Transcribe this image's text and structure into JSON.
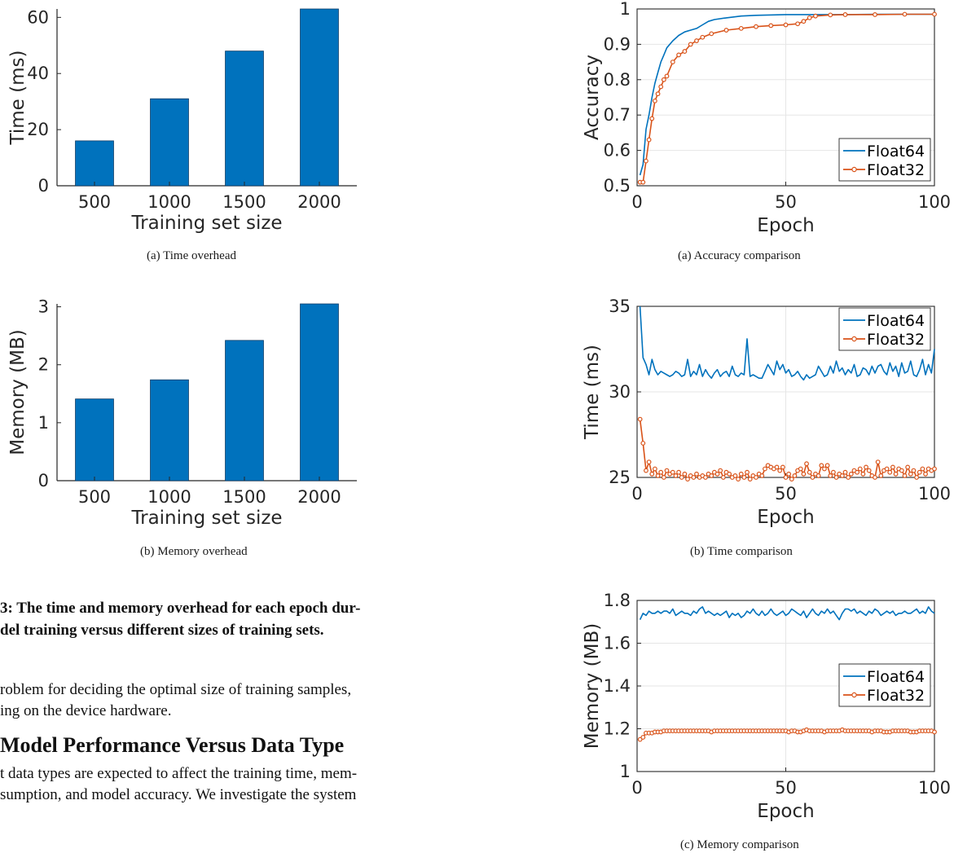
{
  "chart_data": [
    {
      "id": "time_overhead",
      "type": "bar",
      "categories": [
        "500",
        "1000",
        "1500",
        "2000"
      ],
      "values": [
        16,
        31,
        48,
        63
      ],
      "xlabel": "Training set size",
      "ylabel": "Time (ms)",
      "ylim": [
        0,
        63
      ],
      "yticks": [
        0,
        20,
        40,
        60
      ],
      "caption": "(a)  Time overhead",
      "color": "#0072bd"
    },
    {
      "id": "memory_overhead",
      "type": "bar",
      "categories": [
        "500",
        "1000",
        "1500",
        "2000"
      ],
      "values": [
        1.41,
        1.74,
        2.42,
        3.05
      ],
      "xlabel": "Training set size",
      "ylabel": "Memory (MB)",
      "ylim": [
        0,
        3.05
      ],
      "yticks": [
        0,
        1,
        2,
        3
      ],
      "caption": "(b)  Memory overhead",
      "color": "#0072bd"
    },
    {
      "id": "accuracy_comparison",
      "type": "line",
      "xlabel": "Epoch",
      "ylabel": "Accuracy",
      "xlim": [
        0,
        100
      ],
      "ylim": [
        0.5,
        1
      ],
      "xticks": [
        0,
        50,
        100
      ],
      "yticks": [
        0.5,
        0.6,
        0.7,
        0.8,
        0.9,
        1
      ],
      "ytick_labels": [
        "0.5",
        "0.6",
        "0.7",
        "0.8",
        "0.9",
        "1"
      ],
      "grid": true,
      "legend": "bottom-right",
      "caption": "(a)  Accuracy comparison",
      "series": [
        {
          "name": "Float64",
          "color": "#0072bd",
          "marker": "none",
          "x": [
            1,
            2,
            3,
            4,
            5,
            6,
            7,
            8,
            9,
            10,
            12,
            14,
            16,
            18,
            20,
            22,
            24,
            26,
            30,
            35,
            40,
            50,
            60,
            70,
            80,
            90,
            100
          ],
          "y": [
            0.53,
            0.56,
            0.66,
            0.7,
            0.75,
            0.79,
            0.82,
            0.85,
            0.87,
            0.89,
            0.91,
            0.925,
            0.935,
            0.94,
            0.945,
            0.955,
            0.965,
            0.97,
            0.975,
            0.98,
            0.982,
            0.984,
            0.984,
            0.984,
            0.985,
            0.985,
            0.985
          ]
        },
        {
          "name": "Float32",
          "color": "#d95319",
          "marker": "circle",
          "x": [
            1,
            2,
            3,
            4,
            5,
            6,
            7,
            8,
            9,
            10,
            12,
            14,
            16,
            18,
            20,
            22,
            25,
            30,
            35,
            40,
            45,
            50,
            54,
            56,
            58,
            60,
            65,
            70,
            80,
            90,
            100
          ],
          "y": [
            0.51,
            0.51,
            0.57,
            0.63,
            0.69,
            0.74,
            0.76,
            0.78,
            0.8,
            0.81,
            0.85,
            0.87,
            0.88,
            0.9,
            0.91,
            0.92,
            0.93,
            0.94,
            0.945,
            0.95,
            0.953,
            0.955,
            0.958,
            0.965,
            0.975,
            0.98,
            0.983,
            0.984,
            0.984,
            0.985,
            0.985
          ]
        }
      ]
    },
    {
      "id": "time_comparison",
      "type": "line",
      "xlabel": "Epoch",
      "ylabel": "Time (ms)",
      "xlim": [
        0,
        100
      ],
      "ylim": [
        25,
        35
      ],
      "xticks": [
        0,
        50,
        100
      ],
      "yticks": [
        25,
        30,
        35
      ],
      "grid": true,
      "legend": "top-right",
      "caption": "(b)  Time comparison",
      "series": [
        {
          "name": "Float64",
          "color": "#0072bd",
          "marker": "none",
          "x": [
            1,
            2,
            3,
            4,
            5,
            6,
            7,
            8,
            9,
            10,
            11,
            12,
            13,
            14,
            15,
            16,
            17,
            18,
            19,
            20,
            21,
            22,
            23,
            24,
            25,
            26,
            27,
            28,
            29,
            30,
            31,
            32,
            33,
            34,
            35,
            36,
            37,
            38,
            39,
            40,
            41,
            42,
            43,
            44,
            45,
            46,
            47,
            48,
            49,
            50,
            51,
            52,
            53,
            54,
            55,
            56,
            57,
            58,
            59,
            60,
            61,
            62,
            63,
            64,
            65,
            66,
            67,
            68,
            69,
            70,
            71,
            72,
            73,
            74,
            75,
            76,
            77,
            78,
            79,
            80,
            81,
            82,
            83,
            84,
            85,
            86,
            87,
            88,
            89,
            90,
            91,
            92,
            93,
            94,
            95,
            96,
            97,
            98,
            99,
            100
          ],
          "y": [
            35.0,
            32.0,
            31.6,
            31.0,
            31.9,
            31.3,
            31.0,
            31.2,
            31.1,
            31.0,
            30.9,
            31.0,
            31.2,
            31.1,
            30.9,
            31.0,
            31.9,
            30.9,
            31.2,
            31.0,
            31.6,
            30.9,
            31.3,
            31.0,
            30.8,
            31.1,
            31.3,
            30.9,
            31.1,
            31.2,
            30.9,
            31.5,
            31.0,
            30.9,
            31.1,
            31.0,
            33.1,
            30.9,
            31.0,
            30.9,
            30.8,
            30.8,
            31.2,
            31.6,
            31.3,
            31.0,
            31.8,
            31.3,
            31.6,
            31.1,
            31.3,
            30.9,
            31.0,
            31.2,
            30.9,
            30.7,
            31.0,
            30.8,
            30.9,
            31.0,
            31.5,
            31.2,
            30.9,
            31.0,
            31.5,
            31.1,
            31.8,
            31.2,
            31.4,
            31.0,
            31.3,
            31.1,
            31.6,
            30.9,
            31.0,
            31.4,
            31.3,
            31.0,
            31.5,
            31.1,
            31.5,
            31.6,
            31.2,
            31.0,
            31.7,
            31.2,
            31.5,
            30.9,
            31.7,
            31.1,
            31.2,
            31.8,
            31.0,
            30.9,
            31.3,
            31.9,
            31.0,
            31.6,
            31.1,
            32.5
          ]
        },
        {
          "name": "Float32",
          "color": "#d95319",
          "marker": "circle",
          "x": [
            1,
            2,
            3,
            4,
            5,
            6,
            7,
            8,
            9,
            10,
            11,
            12,
            13,
            14,
            15,
            16,
            17,
            18,
            19,
            20,
            21,
            22,
            23,
            24,
            25,
            26,
            27,
            28,
            29,
            30,
            31,
            32,
            33,
            34,
            35,
            36,
            37,
            38,
            39,
            40,
            41,
            42,
            43,
            44,
            45,
            46,
            47,
            48,
            49,
            50,
            51,
            52,
            53,
            54,
            55,
            56,
            57,
            58,
            59,
            60,
            61,
            62,
            63,
            64,
            65,
            66,
            67,
            68,
            69,
            70,
            71,
            72,
            73,
            74,
            75,
            76,
            77,
            78,
            79,
            80,
            81,
            82,
            83,
            84,
            85,
            86,
            87,
            88,
            89,
            90,
            91,
            92,
            93,
            94,
            95,
            96,
            97,
            98,
            99,
            100
          ],
          "y": [
            28.4,
            27.0,
            25.4,
            25.9,
            25.2,
            25.5,
            25.1,
            25.3,
            25.0,
            25.4,
            25.2,
            25.3,
            25.1,
            25.3,
            25.0,
            25.2,
            24.9,
            25.1,
            25.0,
            25.2,
            25.0,
            25.1,
            25.0,
            25.2,
            25.1,
            25.3,
            25.2,
            25.4,
            25.0,
            25.3,
            25.2,
            25.0,
            25.1,
            24.9,
            25.2,
            25.0,
            25.3,
            24.9,
            25.1,
            25.0,
            25.2,
            25.1,
            25.5,
            25.7,
            25.6,
            25.5,
            25.6,
            25.4,
            25.6,
            25.0,
            25.2,
            24.9,
            25.1,
            25.4,
            25.5,
            25.2,
            25.8,
            25.3,
            25.0,
            25.2,
            25.1,
            25.7,
            25.5,
            25.7,
            25.1,
            25.3,
            25.0,
            25.2,
            25.1,
            25.3,
            25.0,
            25.2,
            25.4,
            25.3,
            25.5,
            25.2,
            25.6,
            25.4,
            25.1,
            25.0,
            25.9,
            25.1,
            25.4,
            25.5,
            25.3,
            25.6,
            25.2,
            25.5,
            25.4,
            25.1,
            25.6,
            25.2,
            25.4,
            25.0,
            25.3,
            25.5,
            25.2,
            25.5,
            25.4,
            25.5
          ]
        }
      ]
    },
    {
      "id": "memory_comparison",
      "type": "line",
      "xlabel": "Epoch",
      "ylabel": "Memory (MB)",
      "xlim": [
        0,
        100
      ],
      "ylim": [
        1,
        1.8
      ],
      "xticks": [
        0,
        50,
        100
      ],
      "yticks": [
        1,
        1.2,
        1.4,
        1.6,
        1.8
      ],
      "ytick_labels": [
        "1",
        "1.2",
        "1.4",
        "1.6",
        "1.8"
      ],
      "grid": true,
      "legend": "right",
      "caption": "(c)  Memory comparison",
      "series": [
        {
          "name": "Float64",
          "color": "#0072bd",
          "marker": "none",
          "x": [
            1,
            2,
            3,
            4,
            5,
            6,
            7,
            8,
            9,
            10,
            11,
            12,
            13,
            14,
            15,
            16,
            17,
            18,
            19,
            20,
            21,
            22,
            23,
            24,
            25,
            26,
            27,
            28,
            29,
            30,
            31,
            32,
            33,
            34,
            35,
            36,
            37,
            38,
            39,
            40,
            41,
            42,
            43,
            44,
            45,
            46,
            47,
            48,
            49,
            50,
            51,
            52,
            53,
            54,
            55,
            56,
            57,
            58,
            59,
            60,
            61,
            62,
            63,
            64,
            65,
            66,
            67,
            68,
            69,
            70,
            71,
            72,
            73,
            74,
            75,
            76,
            77,
            78,
            79,
            80,
            81,
            82,
            83,
            84,
            85,
            86,
            87,
            88,
            89,
            90,
            91,
            92,
            93,
            94,
            95,
            96,
            97,
            98,
            99,
            100
          ],
          "y": [
            1.71,
            1.74,
            1.73,
            1.75,
            1.74,
            1.74,
            1.75,
            1.74,
            1.75,
            1.75,
            1.74,
            1.76,
            1.73,
            1.74,
            1.75,
            1.74,
            1.74,
            1.73,
            1.75,
            1.74,
            1.76,
            1.77,
            1.74,
            1.75,
            1.74,
            1.73,
            1.74,
            1.73,
            1.74,
            1.75,
            1.72,
            1.74,
            1.73,
            1.74,
            1.72,
            1.73,
            1.75,
            1.74,
            1.76,
            1.74,
            1.73,
            1.75,
            1.73,
            1.74,
            1.76,
            1.74,
            1.73,
            1.74,
            1.75,
            1.73,
            1.74,
            1.76,
            1.75,
            1.74,
            1.73,
            1.75,
            1.72,
            1.74,
            1.76,
            1.74,
            1.73,
            1.75,
            1.74,
            1.76,
            1.74,
            1.75,
            1.73,
            1.71,
            1.74,
            1.76,
            1.76,
            1.75,
            1.76,
            1.74,
            1.75,
            1.74,
            1.73,
            1.75,
            1.74,
            1.76,
            1.75,
            1.73,
            1.74,
            1.75,
            1.74,
            1.75,
            1.73,
            1.74,
            1.74,
            1.75,
            1.74,
            1.74,
            1.75,
            1.76,
            1.74,
            1.75,
            1.74,
            1.77,
            1.75,
            1.74
          ]
        },
        {
          "name": "Float32",
          "color": "#d95319",
          "marker": "circle",
          "x": [
            1,
            2,
            3,
            4,
            5,
            6,
            7,
            8,
            9,
            10,
            11,
            12,
            13,
            14,
            15,
            16,
            17,
            18,
            19,
            20,
            21,
            22,
            23,
            24,
            25,
            26,
            27,
            28,
            29,
            30,
            31,
            32,
            33,
            34,
            35,
            36,
            37,
            38,
            39,
            40,
            41,
            42,
            43,
            44,
            45,
            46,
            47,
            48,
            49,
            50,
            51,
            52,
            53,
            54,
            55,
            56,
            57,
            58,
            59,
            60,
            61,
            62,
            63,
            64,
            65,
            66,
            67,
            68,
            69,
            70,
            71,
            72,
            73,
            74,
            75,
            76,
            77,
            78,
            79,
            80,
            81,
            82,
            83,
            84,
            85,
            86,
            87,
            88,
            89,
            90,
            91,
            92,
            93,
            94,
            95,
            96,
            97,
            98,
            99,
            100
          ],
          "y": [
            1.15,
            1.16,
            1.18,
            1.18,
            1.18,
            1.185,
            1.185,
            1.185,
            1.19,
            1.19,
            1.19,
            1.19,
            1.19,
            1.19,
            1.19,
            1.19,
            1.19,
            1.19,
            1.19,
            1.19,
            1.19,
            1.19,
            1.19,
            1.19,
            1.185,
            1.19,
            1.19,
            1.19,
            1.19,
            1.19,
            1.19,
            1.19,
            1.19,
            1.19,
            1.19,
            1.19,
            1.19,
            1.19,
            1.19,
            1.19,
            1.19,
            1.19,
            1.19,
            1.19,
            1.19,
            1.19,
            1.19,
            1.19,
            1.19,
            1.19,
            1.185,
            1.19,
            1.19,
            1.185,
            1.185,
            1.19,
            1.195,
            1.19,
            1.19,
            1.19,
            1.19,
            1.19,
            1.185,
            1.19,
            1.19,
            1.19,
            1.19,
            1.19,
            1.195,
            1.19,
            1.19,
            1.19,
            1.19,
            1.19,
            1.19,
            1.19,
            1.19,
            1.19,
            1.185,
            1.19,
            1.19,
            1.19,
            1.185,
            1.185,
            1.185,
            1.19,
            1.19,
            1.19,
            1.19,
            1.19,
            1.19,
            1.185,
            1.185,
            1.185,
            1.19,
            1.19,
            1.19,
            1.19,
            1.19,
            1.185
          ]
        }
      ]
    }
  ],
  "figure_caption": {
    "line1": "3: The time and memory overhead for each epoch dur-",
    "line2": "del training versus different sizes of training sets."
  },
  "paragraph1": {
    "line1": "roblem for deciding the optimal size of training samples,",
    "line2": "ing on the device hardware."
  },
  "section_heading": "Model Performance Versus Data Type",
  "paragraph2": {
    "line1": "t data types are expected to affect the training time, mem-",
    "line2": "sumption, and model accuracy. We investigate the system"
  }
}
